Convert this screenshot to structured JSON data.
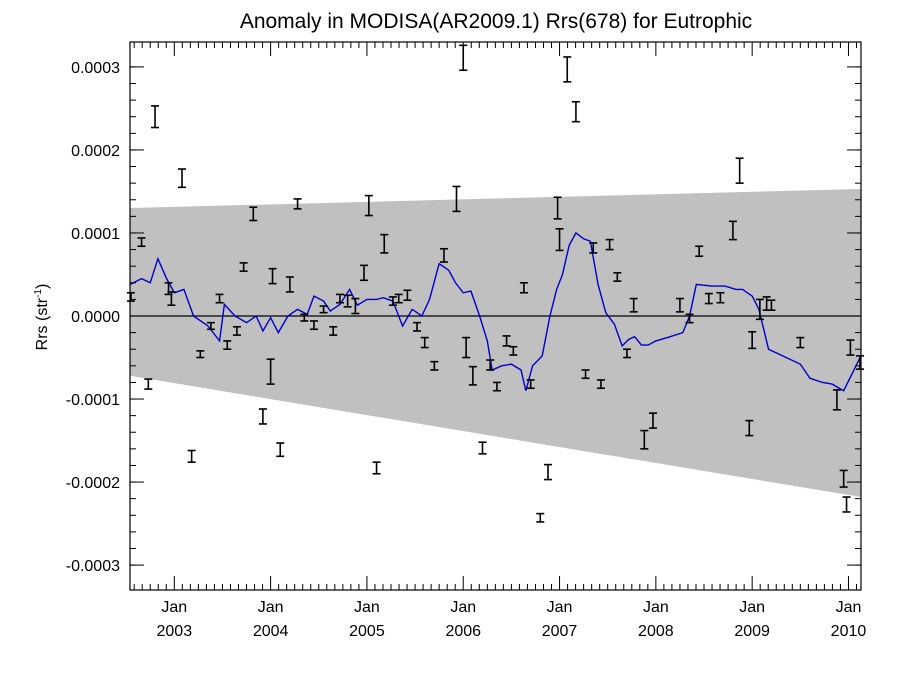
{
  "chart_data": {
    "type": "line",
    "title": "Anomaly in MODISA(AR2009.1) Rrs(678) for Eutrophic",
    "ylabel": {
      "base": "Rrs (str",
      "sup": "-1",
      "end": ")"
    },
    "xlabel": "",
    "xlim": [
      2002.54,
      2010.13
    ],
    "ylim": [
      -0.00033,
      0.00033
    ],
    "y_ticks": [
      -0.0003,
      -0.0002,
      -0.0001,
      0.0,
      0.0001,
      0.0002,
      0.0003
    ],
    "y_tick_labels": [
      "-0.0003",
      "-0.0002",
      "-0.0001",
      "0.0000",
      "0.0001",
      "0.0002",
      "0.0003"
    ],
    "x_ticks": [
      {
        "x": 2003.0,
        "month": "Jan",
        "year": "2003"
      },
      {
        "x": 2004.0,
        "month": "Jan",
        "year": "2004"
      },
      {
        "x": 2005.0,
        "month": "Jan",
        "year": "2005"
      },
      {
        "x": 2006.0,
        "month": "Jan",
        "year": "2006"
      },
      {
        "x": 2007.0,
        "month": "Jan",
        "year": "2007"
      },
      {
        "x": 2008.0,
        "month": "Jan",
        "year": "2008"
      },
      {
        "x": 2009.0,
        "month": "Jan",
        "year": "2009"
      },
      {
        "x": 2010.0,
        "month": "Jan",
        "year": "2010"
      }
    ],
    "zero_line": 0.0,
    "colors": {
      "line": "#0000cc",
      "band": "#c0c0c0",
      "errorbar": "#000000",
      "axis": "#000000"
    },
    "band": {
      "upper": [
        [
          2002.54,
          0.00013
        ],
        [
          2010.13,
          0.000153
        ]
      ],
      "lower": [
        [
          2002.54,
          -7.2e-05
        ],
        [
          2010.13,
          -0.000218
        ]
      ]
    },
    "series": [
      {
        "type": "line",
        "points": [
          [
            2002.54,
            3.8e-05
          ],
          [
            2002.66,
            4.5e-05
          ],
          [
            2002.75,
            4e-05
          ],
          [
            2002.83,
            6.9e-05
          ],
          [
            2002.92,
            4.5e-05
          ],
          [
            2003.0,
            2.8e-05
          ],
          [
            2003.1,
            3.2e-05
          ],
          [
            2003.2,
            0.0
          ],
          [
            2003.35,
            -1.2e-05
          ],
          [
            2003.47,
            -3e-05
          ],
          [
            2003.52,
            1.4e-05
          ],
          [
            2003.63,
            0.0
          ],
          [
            2003.75,
            -8e-06
          ],
          [
            2003.85,
            0.0
          ],
          [
            2003.92,
            -1.8e-05
          ],
          [
            2004.0,
            -2e-06
          ],
          [
            2004.08,
            -2e-05
          ],
          [
            2004.18,
            0.0
          ],
          [
            2004.28,
            8e-06
          ],
          [
            2004.38,
            2e-06
          ],
          [
            2004.45,
            2.4e-05
          ],
          [
            2004.55,
            1.8e-05
          ],
          [
            2004.62,
            6e-06
          ],
          [
            2004.72,
            1.4e-05
          ],
          [
            2004.82,
            3.2e-05
          ],
          [
            2004.9,
            1.3e-05
          ],
          [
            2005.0,
            2e-05
          ],
          [
            2005.1,
            2e-05
          ],
          [
            2005.17,
            2.2e-05
          ],
          [
            2005.27,
            1.8e-05
          ],
          [
            2005.37,
            -1.2e-05
          ],
          [
            2005.47,
            8e-06
          ],
          [
            2005.57,
            0.0
          ],
          [
            2005.65,
            2e-05
          ],
          [
            2005.75,
            6.3e-05
          ],
          [
            2005.85,
            5.5e-05
          ],
          [
            2005.92,
            4e-05
          ],
          [
            2006.0,
            2.8e-05
          ],
          [
            2006.08,
            3e-05
          ],
          [
            2006.17,
            0.0
          ],
          [
            2006.25,
            -3e-05
          ],
          [
            2006.3,
            -6.5e-05
          ],
          [
            2006.4,
            -6e-05
          ],
          [
            2006.5,
            -5.8e-05
          ],
          [
            2006.6,
            -6.5e-05
          ],
          [
            2006.65,
            -9e-05
          ],
          [
            2006.72,
            -6e-05
          ],
          [
            2006.82,
            -4.8e-05
          ],
          [
            2006.9,
            0.0
          ],
          [
            2006.97,
            3.2e-05
          ],
          [
            2007.03,
            5e-05
          ],
          [
            2007.1,
            8.5e-05
          ],
          [
            2007.17,
            0.0001
          ],
          [
            2007.25,
            9.3e-05
          ],
          [
            2007.32,
            9e-05
          ],
          [
            2007.4,
            3.8e-05
          ],
          [
            2007.48,
            4e-06
          ],
          [
            2007.57,
            -1e-05
          ],
          [
            2007.65,
            -3.6e-05
          ],
          [
            2007.72,
            -2.8e-05
          ],
          [
            2007.78,
            -2.5e-05
          ],
          [
            2007.85,
            -3.5e-05
          ],
          [
            2007.92,
            -3.5e-05
          ],
          [
            2008.0,
            -3e-05
          ],
          [
            2008.12,
            -2.6e-05
          ],
          [
            2008.28,
            -2e-05
          ],
          [
            2008.35,
            0.0
          ],
          [
            2008.42,
            3.8e-05
          ],
          [
            2008.58,
            3.6e-05
          ],
          [
            2008.72,
            3.6e-05
          ],
          [
            2008.83,
            3.2e-05
          ],
          [
            2008.9,
            3.2e-05
          ],
          [
            2009.0,
            2.4e-05
          ],
          [
            2009.07,
            8e-06
          ],
          [
            2009.17,
            -4e-05
          ],
          [
            2009.5,
            -5.8e-05
          ],
          [
            2009.6,
            -7.5e-05
          ],
          [
            2009.73,
            -8e-05
          ],
          [
            2009.83,
            -8.2e-05
          ],
          [
            2009.95,
            -9e-05
          ],
          [
            2010.13,
            -4.8e-05
          ]
        ]
      },
      {
        "type": "errorbar",
        "points": [
          [
            2002.55,
            2.3e-05,
            5e-06
          ],
          [
            2002.66,
            8.9e-05,
            5e-06
          ],
          [
            2002.73,
            -8.2e-05,
            6e-06
          ],
          [
            2002.8,
            0.00024,
            1.3e-05
          ],
          [
            2002.94,
            3.3e-05,
            7e-06
          ],
          [
            2002.97,
            2.1e-05,
            8e-06
          ],
          [
            2003.08,
            0.000166,
            1.1e-05
          ],
          [
            2003.18,
            -0.000169,
            7e-06
          ],
          [
            2003.27,
            -4.6e-05,
            4e-06
          ],
          [
            2003.38,
            -1.2e-05,
            4e-06
          ],
          [
            2003.47,
            2.1e-05,
            5e-06
          ],
          [
            2003.55,
            -3.5e-05,
            5e-06
          ],
          [
            2003.65,
            -1.8e-05,
            5e-06
          ],
          [
            2003.72,
            5.9e-05,
            5e-06
          ],
          [
            2003.82,
            0.000123,
            8e-06
          ],
          [
            2003.92,
            -0.000121,
            9e-06
          ],
          [
            2004.0,
            -6.7e-05,
            1.5e-05
          ],
          [
            2004.02,
            4.8e-05,
            9e-06
          ],
          [
            2004.1,
            -0.000161,
            8e-06
          ],
          [
            2004.2,
            3.8e-05,
            9e-06
          ],
          [
            2004.28,
            0.000135,
            6e-06
          ],
          [
            2004.35,
            -2e-06,
            4e-06
          ],
          [
            2004.45,
            -1.1e-05,
            5e-06
          ],
          [
            2004.55,
            8e-06,
            4e-06
          ],
          [
            2004.65,
            -1.8e-05,
            5e-06
          ],
          [
            2004.72,
            2.1e-05,
            5e-06
          ],
          [
            2004.8,
            1.8e-05,
            7e-06
          ],
          [
            2004.88,
            1.2e-05,
            9e-06
          ],
          [
            2004.97,
            5.2e-05,
            9e-06
          ],
          [
            2005.02,
            0.000133,
            1.2e-05
          ],
          [
            2005.1,
            -0.000183,
            7e-06
          ],
          [
            2005.18,
            8.7e-05,
            1.1e-05
          ],
          [
            2005.27,
            1.8e-05,
            5e-06
          ],
          [
            2005.33,
            2.1e-05,
            5e-06
          ],
          [
            2005.42,
            2.5e-05,
            6e-06
          ],
          [
            2005.52,
            -1.3e-05,
            5e-06
          ],
          [
            2005.6,
            -3.2e-05,
            6e-06
          ],
          [
            2005.7,
            -6e-05,
            5e-06
          ],
          [
            2005.8,
            7.3e-05,
            8e-06
          ],
          [
            2005.93,
            0.000141,
            1.5e-05
          ],
          [
            2006.0,
            0.000311,
            1.5e-05
          ],
          [
            2006.03,
            -3.8e-05,
            1.2e-05
          ],
          [
            2006.1,
            -7.2e-05,
            1.1e-05
          ],
          [
            2006.2,
            -0.000159,
            7e-06
          ],
          [
            2006.28,
            -5.9e-05,
            6e-06
          ],
          [
            2006.35,
            -8.5e-05,
            5e-06
          ],
          [
            2006.45,
            -3e-05,
            6e-06
          ],
          [
            2006.52,
            -4.2e-05,
            5e-06
          ],
          [
            2006.63,
            3.4e-05,
            6e-06
          ],
          [
            2006.7,
            -8.2e-05,
            5e-06
          ],
          [
            2006.8,
            -0.000243,
            5e-06
          ],
          [
            2006.88,
            -0.000188,
            9e-06
          ],
          [
            2006.98,
            0.00013,
            1.3e-05
          ],
          [
            2007.0,
            9.2e-05,
            1.3e-05
          ],
          [
            2007.08,
            0.000297,
            1.5e-05
          ],
          [
            2007.17,
            0.000246,
            1.2e-05
          ],
          [
            2007.27,
            -7e-05,
            5e-06
          ],
          [
            2007.35,
            8.2e-05,
            6e-06
          ],
          [
            2007.43,
            -8.2e-05,
            5e-06
          ],
          [
            2007.52,
            8.6e-05,
            6e-06
          ],
          [
            2007.6,
            4.7e-05,
            5e-06
          ],
          [
            2007.7,
            -4.5e-05,
            5e-06
          ],
          [
            2007.77,
            1.3e-05,
            8e-06
          ],
          [
            2007.88,
            -0.000149,
            1.1e-05
          ],
          [
            2007.97,
            -0.000126,
            9e-06
          ],
          [
            2008.25,
            1.3e-05,
            8e-06
          ],
          [
            2008.35,
            -3e-06,
            5e-06
          ],
          [
            2008.45,
            7.8e-05,
            6e-06
          ],
          [
            2008.55,
            2.1e-05,
            6e-06
          ],
          [
            2008.67,
            2.2e-05,
            6e-06
          ],
          [
            2008.8,
            0.000103,
            1.1e-05
          ],
          [
            2008.87,
            0.000175,
            1.5e-05
          ],
          [
            2009.0,
            -2.9e-05,
            1e-05
          ],
          [
            2008.97,
            -0.000135,
            9e-06
          ],
          [
            2009.08,
            8e-06,
            1.2e-05
          ],
          [
            2009.15,
            1.5e-05,
            8e-06
          ],
          [
            2009.2,
            1.3e-05,
            6e-06
          ],
          [
            2009.5,
            -3.2e-05,
            6e-06
          ],
          [
            2009.88,
            -0.000101,
            1.2e-05
          ],
          [
            2009.95,
            -0.000196,
            1e-05
          ],
          [
            2009.98,
            -0.000227,
            9e-06
          ],
          [
            2010.02,
            -3.8e-05,
            9e-06
          ],
          [
            2010.12,
            -5.6e-05,
            8e-06
          ]
        ]
      }
    ]
  }
}
